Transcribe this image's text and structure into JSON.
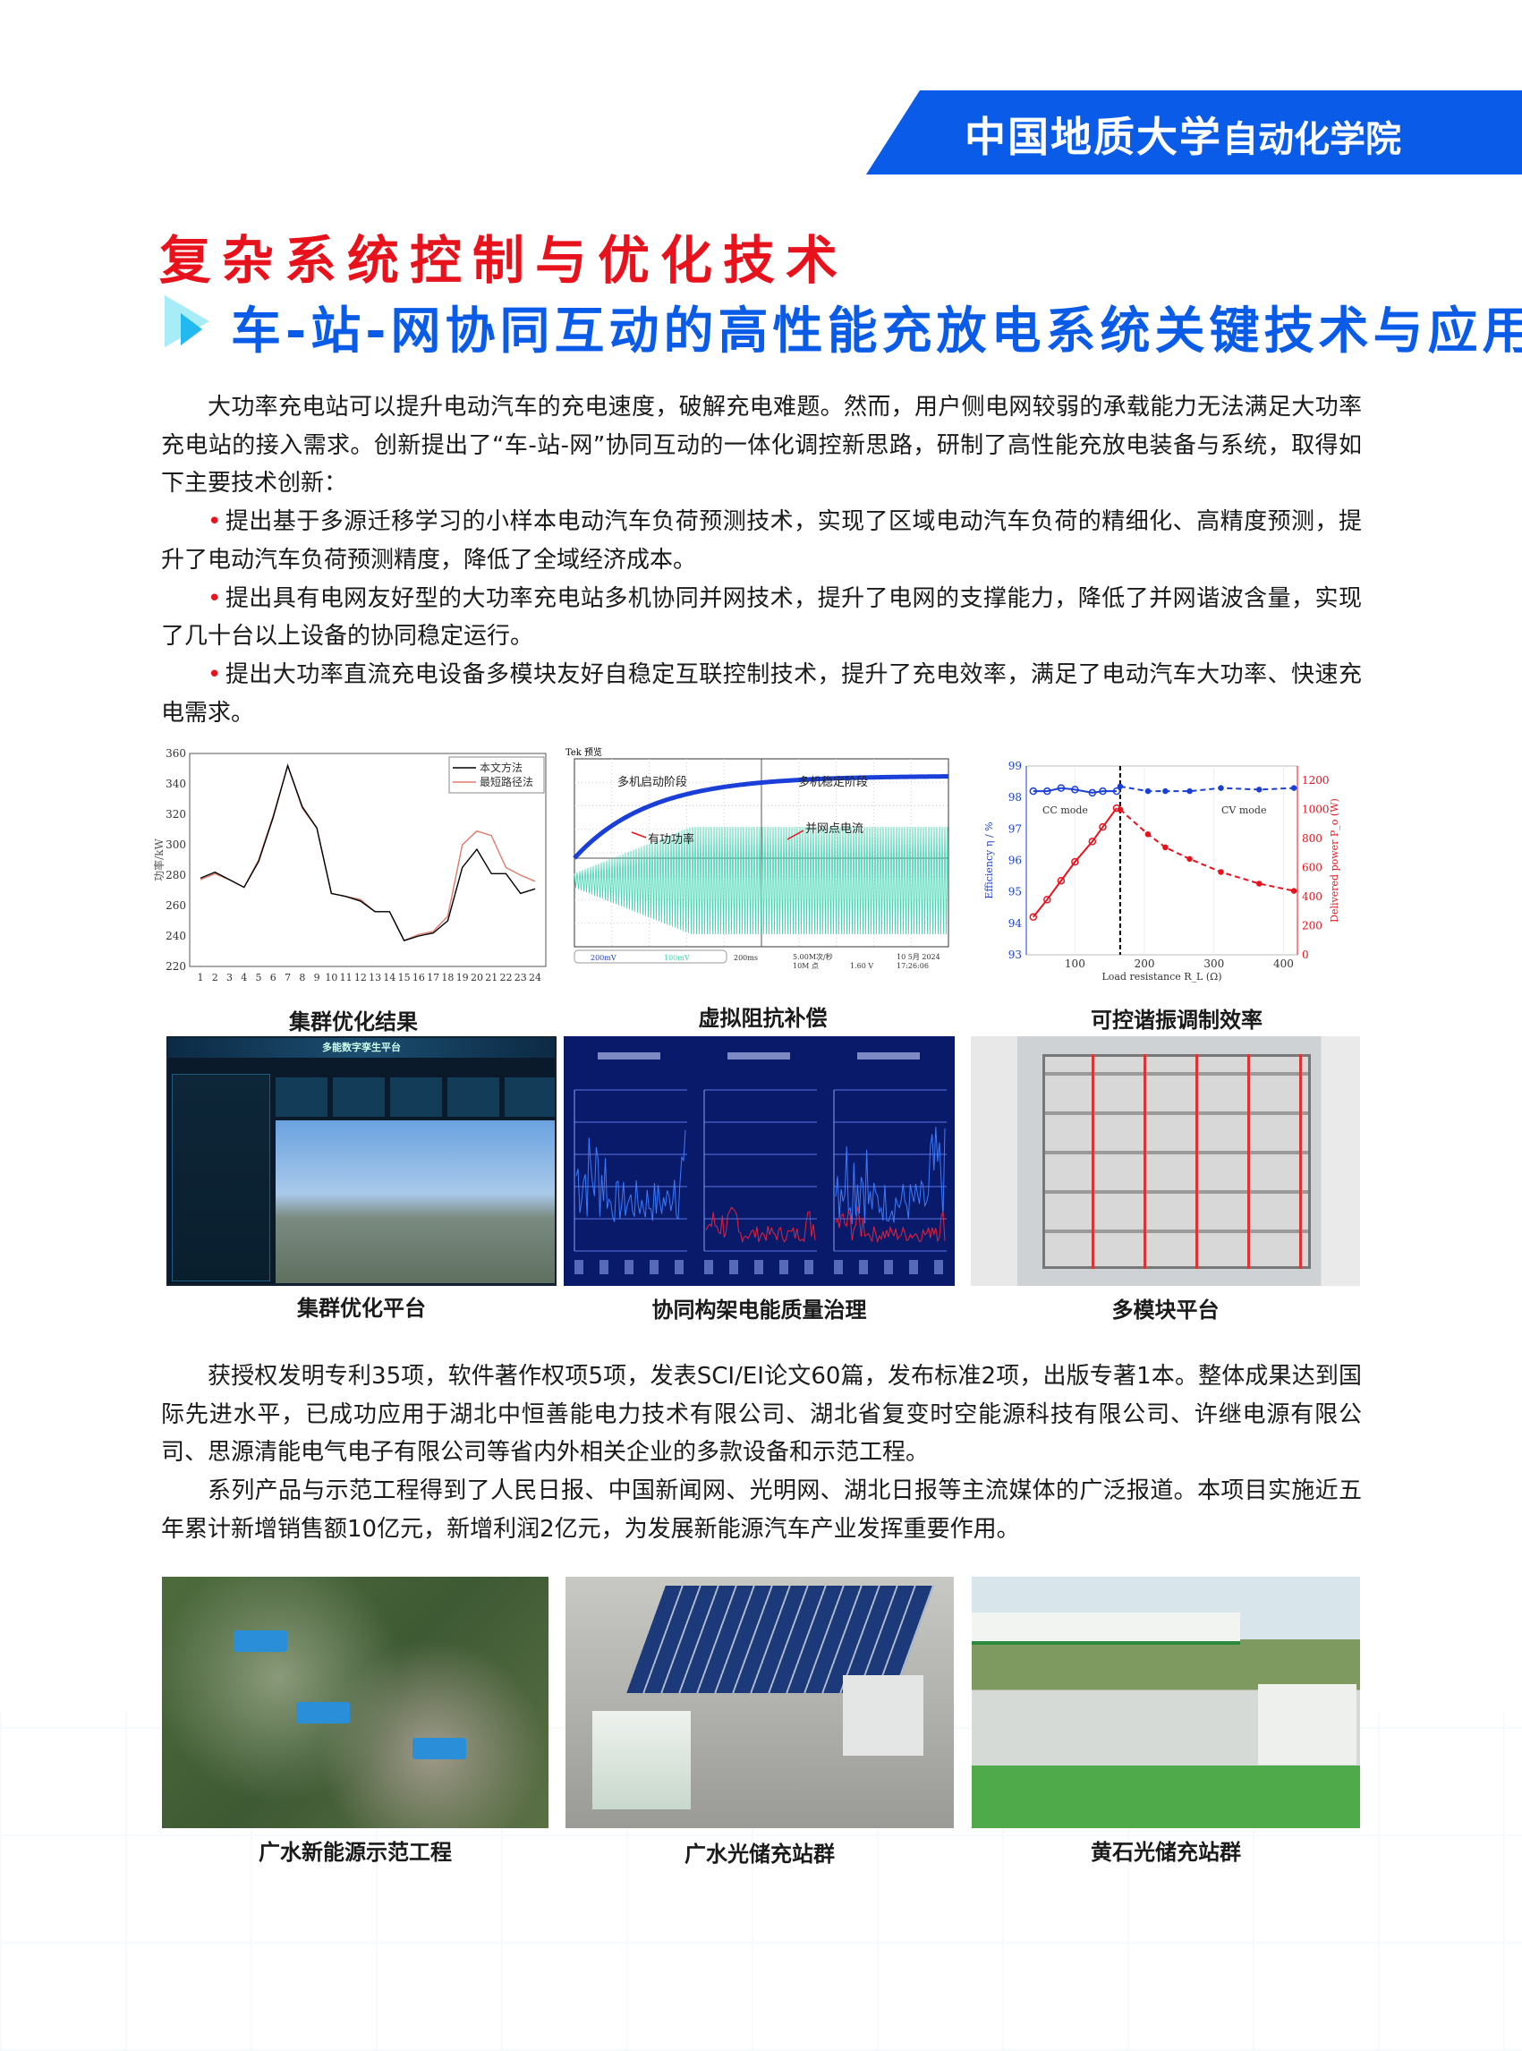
{
  "header": {
    "university": "中国地质大学",
    "school": "自动化学院",
    "accent": "#0a5ce8"
  },
  "section_title": "复杂系统控制与优化技术",
  "project_title": "车-站-网协同互动的高性能充放电系统关键技术与应用",
  "intro": {
    "paragraph": "大功率充电站可以提升电动汽车的充电速度，破解充电难题。然而，用户侧电网较弱的承载能力无法满足大功率充电站的接入需求。创新提出了“车-站-网”协同互动的一体化调控新思路，研制了高性能充放电装备与系统，取得如下主要技术创新：",
    "bullets": [
      "提出基于多源迁移学习的小样本电动汽车负荷预测技术，实现了区域电动汽车负荷的精细化、高精度预测，提升了电动汽车负荷预测精度，降低了全域经济成本。",
      "提出具有电网友好型的大功率充电站多机协同并网技术，提升了电网的支撑能力，降低了并网谐波含量，实现了几十台以上设备的协同稳定运行。",
      "提出大功率直流充电设备多模块友好自稳定互联控制技术，提升了充电效率，满足了电动汽车大功率、快速充电需求。"
    ]
  },
  "results": [
    "获授权发明专利35项，软件著作权项5项，发表SCI/EI论文60篇，发布标准2项，出版专著1本。整体成果达到国际先进水平，已成功应用于湖北中恒善能电力技术有限公司、湖北省复变时空能源科技有限公司、许继电源有限公司、思源清能电气电子有限公司等省内外相关企业的多款设备和示范工程。",
    "系列产品与示范工程得到了人民日报、中国新闻网、光明网、湖北日报等主流媒体的广泛报道。本项目实施近五年累计新增销售额10亿元，新增利润2亿元，为发展新能源汽车产业发挥重要作用。"
  ],
  "captions": {
    "fig1": "集群优化结果",
    "fig2": "虚拟阻抗补偿",
    "fig3": "可控谐振调制效率",
    "fig4": "集群优化平台",
    "fig5": "协同构架电能质量治理",
    "fig6": "多模块平台",
    "fig7": "广水新能源示范工程",
    "fig8": "广水光储充站群",
    "fig9": "黄石光储充站群"
  },
  "chart_data": [
    {
      "type": "line",
      "ylabel": "功率/kW",
      "ylim": [
        220,
        360
      ],
      "yticks": [
        220,
        240,
        260,
        280,
        300,
        320,
        340,
        360
      ],
      "categories": [
        "1",
        "2",
        "3",
        "4",
        "5",
        "6",
        "7",
        "8",
        "9",
        "10",
        "11",
        "12",
        "13",
        "14",
        "15",
        "16",
        "17",
        "18",
        "19",
        "20",
        "21",
        "22",
        "23",
        "24"
      ],
      "legend": "top-right",
      "series": [
        {
          "name": "本文方法",
          "color": "#000000",
          "values": [
            278,
            282,
            277,
            272,
            289,
            318,
            352,
            325,
            311,
            268,
            266,
            263,
            256,
            256,
            237,
            240,
            242,
            250,
            285,
            297,
            281,
            281,
            268,
            271
          ]
        },
        {
          "name": "最短路径法",
          "color": "#e07a6a",
          "values": [
            277,
            281,
            277,
            272,
            290,
            319,
            352,
            324,
            311,
            268,
            266,
            264,
            256,
            256,
            237,
            241,
            243,
            253,
            300,
            309,
            306,
            285,
            280,
            276
          ]
        }
      ]
    },
    {
      "type": "line",
      "header": "Tek 预览",
      "annotations": [
        "多机启动阶段",
        "多机稳定阶段",
        "有功功率",
        "并网点电流"
      ],
      "channels": [
        {
          "label": "200mV",
          "color": "#1a3fd8"
        },
        {
          "label": "100mV",
          "color": "#3dd6b0"
        }
      ],
      "timebase": "200ms",
      "sample_rate": "5.00M次/秒",
      "record": "10M 点",
      "trigger": "1.60 V",
      "date": "10 5月 2024",
      "time": "17:26:06"
    },
    {
      "type": "line",
      "xlabel": "Load resistance R_L (Ω)",
      "ylabel": "Efficiency η / %",
      "y2label": "Delivered power P_o (W)",
      "xlim": [
        30,
        420
      ],
      "xticks": [
        100,
        200,
        300,
        400
      ],
      "ylim": [
        93,
        99
      ],
      "yticks": [
        93,
        94,
        95,
        96,
        97,
        98,
        99
      ],
      "y2lim": [
        0,
        1300
      ],
      "y2ticks": [
        0,
        200,
        400,
        600,
        800,
        1000,
        1200
      ],
      "annotations": [
        "CC mode",
        "CV mode"
      ],
      "mode_boundary": 165,
      "series": [
        {
          "axis": "left",
          "color": "#1a3fd8",
          "style": "solid",
          "x": [
            40,
            60,
            80,
            100,
            125,
            140,
            160
          ],
          "values": [
            98.2,
            98.2,
            98.3,
            98.25,
            98.15,
            98.2,
            98.2
          ]
        },
        {
          "axis": "left",
          "color": "#1a3fd8",
          "style": "dashed",
          "x": [
            165,
            205,
            230,
            265,
            310,
            365,
            415
          ],
          "values": [
            98.35,
            98.2,
            98.2,
            98.2,
            98.3,
            98.25,
            98.3
          ]
        },
        {
          "axis": "right",
          "color": "#e8121c",
          "style": "solid",
          "x": [
            40,
            60,
            80,
            100,
            125,
            140,
            160
          ],
          "values": [
            260,
            380,
            510,
            640,
            780,
            880,
            1010
          ]
        },
        {
          "axis": "right",
          "color": "#e8121c",
          "style": "dashed",
          "x": [
            165,
            205,
            230,
            265,
            310,
            365,
            415
          ],
          "values": [
            1000,
            830,
            740,
            660,
            570,
            490,
            440
          ]
        }
      ]
    }
  ],
  "platform_screen": {
    "title": "多能数字孪生平台",
    "kpis": [
      "生产"
    ]
  },
  "quality_panels": {
    "count": 3
  }
}
